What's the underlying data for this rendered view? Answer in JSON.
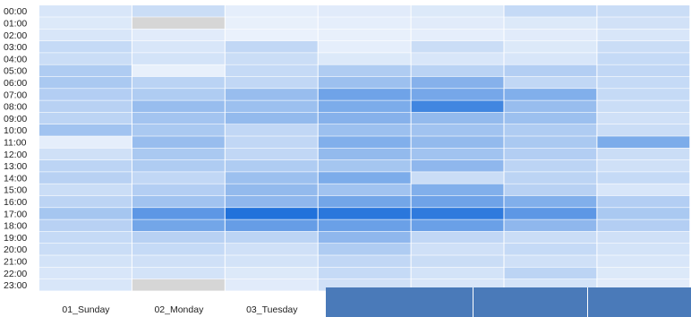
{
  "chart_data": {
    "type": "heatmap",
    "title": "",
    "xlabel": "",
    "ylabel": "",
    "rows": [
      "00:00",
      "01:00",
      "02:00",
      "03:00",
      "04:00",
      "05:00",
      "06:00",
      "07:00",
      "08:00",
      "09:00",
      "10:00",
      "11:00",
      "12:00",
      "13:00",
      "14:00",
      "15:00",
      "16:00",
      "17:00",
      "18:00",
      "19:00",
      "20:00",
      "21:00",
      "22:00",
      "23:00"
    ],
    "columns": [
      "01_Sunday",
      "02_Monday",
      "03_Tuesday",
      "",
      "",
      "",
      ""
    ],
    "values": [
      [
        0.12,
        0.18,
        0.06,
        0.08,
        0.1,
        0.2,
        0.18
      ],
      [
        0.1,
        null,
        0.05,
        0.06,
        0.08,
        0.1,
        0.15
      ],
      [
        0.12,
        0.08,
        0.04,
        0.05,
        0.06,
        0.08,
        0.12
      ],
      [
        0.2,
        0.12,
        0.22,
        0.06,
        0.18,
        0.1,
        0.18
      ],
      [
        0.18,
        0.14,
        0.18,
        0.1,
        0.12,
        0.12,
        0.2
      ],
      [
        0.3,
        0.05,
        0.2,
        0.3,
        0.25,
        0.28,
        0.22
      ],
      [
        0.32,
        0.25,
        0.22,
        0.38,
        0.48,
        0.22,
        0.2
      ],
      [
        0.28,
        0.3,
        0.4,
        0.58,
        0.55,
        0.5,
        0.2
      ],
      [
        0.26,
        0.4,
        0.38,
        0.52,
        0.78,
        0.4,
        0.18
      ],
      [
        0.24,
        0.35,
        0.42,
        0.48,
        0.42,
        0.38,
        0.16
      ],
      [
        0.36,
        0.32,
        0.22,
        0.38,
        0.36,
        0.3,
        0.18
      ],
      [
        0.06,
        0.4,
        0.22,
        0.5,
        0.42,
        0.32,
        0.52
      ],
      [
        0.16,
        0.32,
        0.22,
        0.42,
        0.36,
        0.28,
        0.18
      ],
      [
        0.24,
        0.3,
        0.3,
        0.34,
        0.44,
        0.24,
        0.16
      ],
      [
        0.26,
        0.22,
        0.38,
        0.52,
        0.18,
        0.24,
        0.2
      ],
      [
        0.18,
        0.28,
        0.42,
        0.36,
        0.5,
        0.26,
        0.12
      ],
      [
        0.24,
        0.36,
        0.44,
        0.56,
        0.58,
        0.5,
        0.28
      ],
      [
        0.34,
        0.66,
        0.92,
        0.88,
        0.86,
        0.66,
        0.32
      ],
      [
        0.26,
        0.56,
        0.62,
        0.6,
        0.6,
        0.44,
        0.28
      ],
      [
        0.2,
        0.26,
        0.24,
        0.44,
        0.22,
        0.18,
        0.16
      ],
      [
        0.18,
        0.2,
        0.16,
        0.3,
        0.16,
        0.2,
        0.14
      ],
      [
        0.14,
        0.16,
        0.14,
        0.22,
        0.18,
        0.16,
        0.12
      ],
      [
        0.12,
        0.14,
        0.1,
        0.2,
        0.14,
        0.24,
        0.1
      ],
      [
        0.12,
        null,
        0.08,
        0.16,
        0.12,
        0.14,
        0.08
      ]
    ],
    "color_scale": {
      "low": "#f3f7fd",
      "high": "#0f66d8",
      "missing": "#d6d6d6"
    },
    "grid": false,
    "legend": "none"
  },
  "colors": {
    "overlay_panel": "#4a7ab9",
    "label_text": "#222222"
  }
}
